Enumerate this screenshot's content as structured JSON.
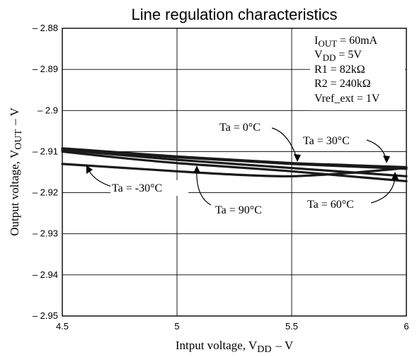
{
  "chart_data": {
    "type": "line",
    "title": "Line regulation characteristics",
    "xlabel": {
      "main": "Intput voltage, V",
      "sub": "DD",
      "unit": "–  V"
    },
    "ylabel": {
      "main": "Output voltage, V",
      "sub": "OUT",
      "unit": "–  V"
    },
    "xlim": [
      4.5,
      6
    ],
    "ylim": [
      -2.95,
      -2.88
    ],
    "x_ticks": [
      "4.5",
      "5",
      "5.5",
      "6"
    ],
    "y_ticks": [
      "– 2.88",
      "– 2.89",
      "– 2.9",
      "– 2.91",
      "– 2.92",
      "– 2.93",
      "– 2.94",
      "– 2.95"
    ],
    "x_tick_values": [
      4.5,
      5,
      5.5,
      6
    ],
    "y_tick_values": [
      -2.88,
      -2.89,
      -2.9,
      -2.91,
      -2.92,
      -2.93,
      -2.94,
      -2.95
    ],
    "grid": true,
    "conditions": [
      {
        "main": "I",
        "sub": "OUT",
        "rest": " = 60mA"
      },
      {
        "main": "V",
        "sub": "DD",
        "rest": " = 5V"
      },
      {
        "main": "R1 = 82kΩ",
        "sub": "",
        "rest": ""
      },
      {
        "main": "R2 = 240kΩ",
        "sub": "",
        "rest": ""
      },
      {
        "main": "Vref_ext = 1V",
        "sub": "",
        "rest": ""
      }
    ],
    "series": [
      {
        "name": "Ta = -30°C",
        "x": [
          4.5,
          4.75,
          5.0,
          5.25,
          5.5,
          5.75,
          6.0
        ],
        "y": [
          -2.913,
          -2.9139,
          -2.9148,
          -2.9156,
          -2.916,
          -2.9152,
          -2.914
        ]
      },
      {
        "name": "Ta = 0°C",
        "x": [
          4.5,
          4.75,
          5.0,
          5.25,
          5.5,
          5.75,
          6.0
        ],
        "y": [
          -2.9092,
          -2.9102,
          -2.9112,
          -2.912,
          -2.9128,
          -2.9133,
          -2.9138
        ]
      },
      {
        "name": "Ta = 30°C",
        "x": [
          4.5,
          4.75,
          5.0,
          5.25,
          5.5,
          5.75,
          6.0
        ],
        "y": [
          -2.9094,
          -2.9104,
          -2.9114,
          -2.9122,
          -2.913,
          -2.9136,
          -2.9142
        ]
      },
      {
        "name": "Ta = 60°C",
        "x": [
          4.5,
          4.75,
          5.0,
          5.25,
          5.5,
          5.75,
          6.0
        ],
        "y": [
          -2.9096,
          -2.9108,
          -2.912,
          -2.913,
          -2.914,
          -2.915,
          -2.916
        ]
      },
      {
        "name": "Ta = 90°C",
        "x": [
          4.5,
          4.75,
          5.0,
          5.25,
          5.5,
          5.75,
          6.0
        ],
        "y": [
          -2.91,
          -2.9115,
          -2.9128,
          -2.9138,
          -2.9148,
          -2.916,
          -2.9172
        ]
      }
    ]
  }
}
